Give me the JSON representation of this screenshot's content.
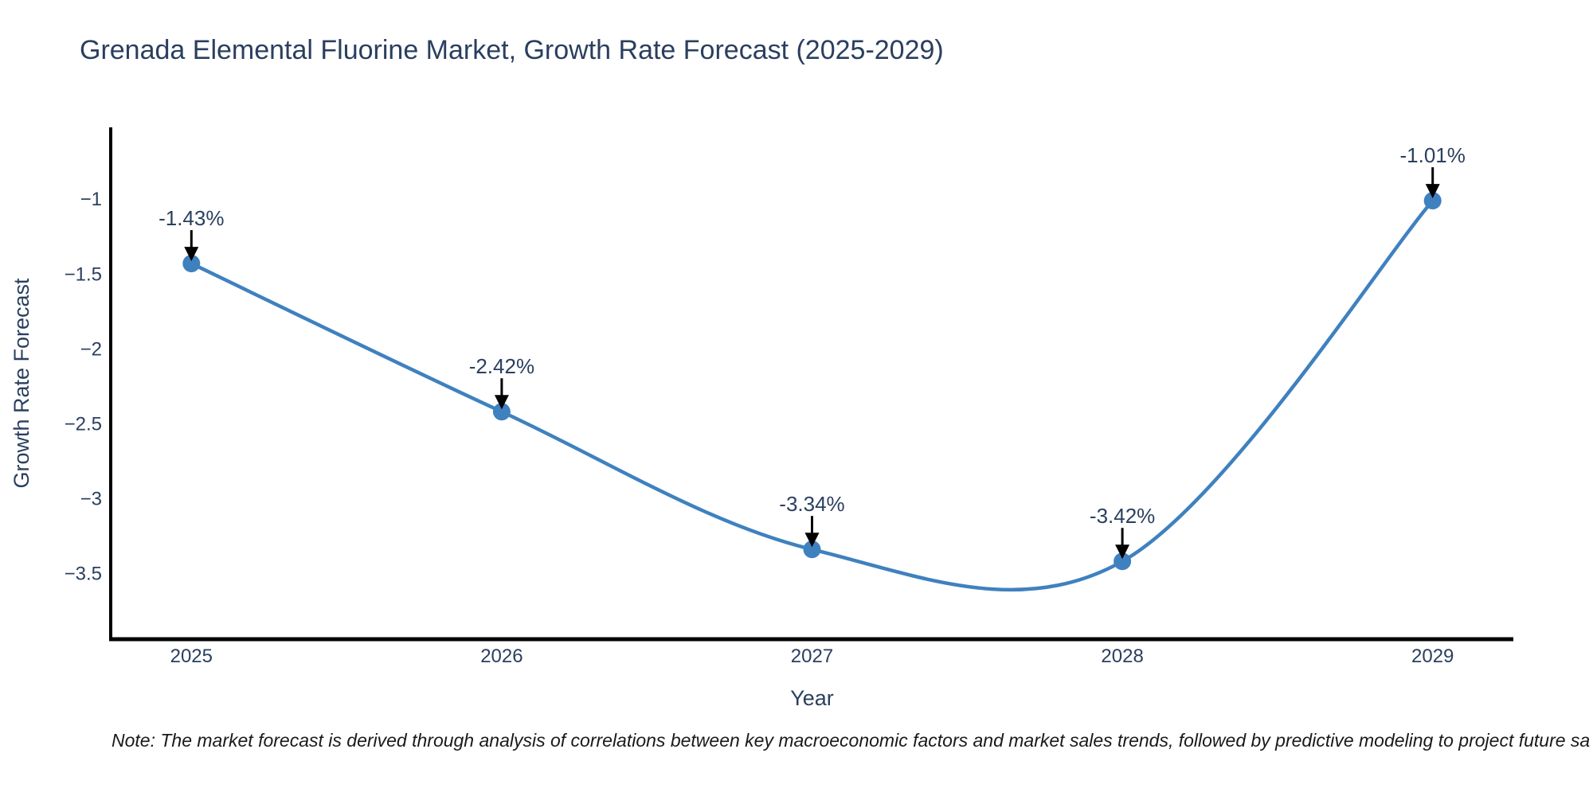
{
  "footnote": "Note: The market forecast is derived through analysis of correlations between key macroeconomic factors and market sales trends, followed by predictive modeling to project future sa",
  "colors": {
    "title_text": "#2a3f5f",
    "axis_text": "#2a3f5f",
    "annotation_text": "#2a3f5f",
    "line": "#3f81bf",
    "marker": "#3f81bf",
    "axis_line": "#000000",
    "arrow": "#000000",
    "note_text": "#1a1a1a",
    "background": "#ffffff"
  },
  "chart_data": {
    "type": "line",
    "title": "Grenada Elemental Fluorine Market, Growth Rate Forecast (2025-2029)",
    "xlabel": "Year",
    "ylabel": "Growth Rate Forecast",
    "x": [
      2025,
      2026,
      2027,
      2028,
      2029
    ],
    "y": [
      -1.43,
      -2.42,
      -3.34,
      -3.42,
      -1.01
    ],
    "point_labels": [
      "-1.43%",
      "-2.42%",
      "-3.34%",
      "-3.42%",
      "-1.01%"
    ],
    "xtick_labels": [
      "2025",
      "2026",
      "2027",
      "2028",
      "2029"
    ],
    "yticks": [
      -1,
      -1.5,
      -2,
      -2.5,
      -3,
      -3.5
    ],
    "ytick_labels": [
      "−1",
      "−1.5",
      "−2",
      "−2.5",
      "−3",
      "−3.5"
    ],
    "xlim": [
      2024.74,
      2029.26
    ],
    "ylim": [
      -3.94,
      -0.52
    ],
    "line_shape": "spline",
    "grid": false,
    "legend": "none"
  }
}
